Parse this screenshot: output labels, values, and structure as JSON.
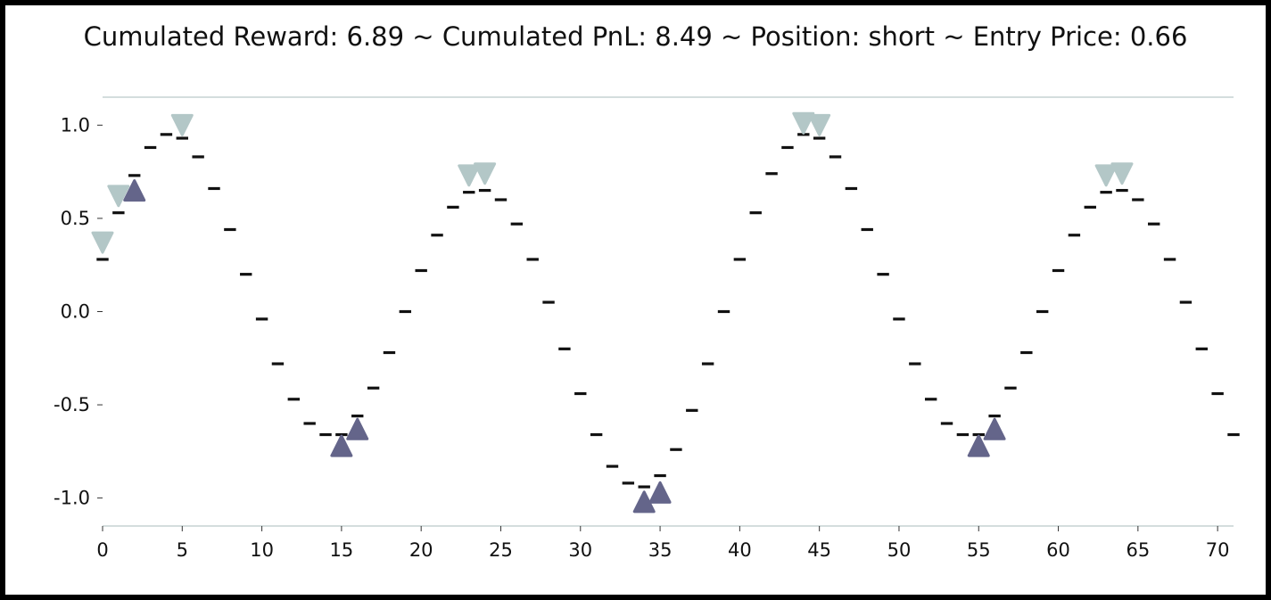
{
  "chart_data": {
    "type": "line",
    "title": "Cumulated Reward: 6.89 ~ Cumulated PnL: 8.49 ~ Position: short ~ Entry Price: 0.66",
    "xlabel": "",
    "ylabel": "",
    "xlim": [
      0,
      71
    ],
    "ylim": [
      -1.15,
      1.15
    ],
    "grid": false,
    "x_ticks": [
      0,
      5,
      10,
      15,
      20,
      25,
      30,
      35,
      40,
      45,
      50,
      55,
      60,
      65,
      70
    ],
    "y_ticks": [
      1.0,
      0.5,
      0.0,
      -0.5,
      -1.0
    ],
    "y_tick_labels": [
      "1.0",
      "0.5",
      "0.0",
      "-0.5",
      "-1.0"
    ],
    "price_series": {
      "x": [
        0,
        1,
        2,
        3,
        4,
        5,
        6,
        7,
        8,
        9,
        10,
        11,
        12,
        13,
        14,
        15,
        16,
        17,
        18,
        19,
        20,
        21,
        22,
        23,
        24,
        25,
        26,
        27,
        28,
        29,
        30,
        31,
        32,
        33,
        34,
        35,
        36,
        37,
        38,
        39,
        40,
        41,
        42,
        43,
        44,
        45,
        46,
        47,
        48,
        49,
        50,
        51,
        52,
        53,
        54,
        55,
        56,
        57,
        58,
        59,
        60,
        61,
        62,
        63,
        64,
        65,
        66,
        67,
        68,
        69,
        70,
        71
      ],
      "y": [
        0.28,
        0.53,
        0.73,
        0.88,
        0.95,
        0.93,
        0.83,
        0.66,
        0.44,
        0.2,
        -0.04,
        -0.28,
        -0.47,
        -0.6,
        -0.66,
        -0.66,
        -0.56,
        -0.41,
        -0.22,
        0.0,
        0.22,
        0.41,
        0.56,
        0.64,
        0.65,
        0.6,
        0.47,
        0.28,
        0.05,
        -0.2,
        -0.44,
        -0.66,
        -0.83,
        -0.92,
        -0.94,
        -0.88,
        -0.74,
        -0.53,
        -0.28,
        0.0,
        0.28,
        0.53,
        0.74,
        0.88,
        0.95,
        0.93,
        0.83,
        0.66,
        0.44,
        0.2,
        -0.04,
        -0.28,
        -0.47,
        -0.6,
        -0.66,
        -0.66,
        -0.56,
        -0.41,
        -0.22,
        0.0,
        0.22,
        0.41,
        0.56,
        0.64,
        0.65,
        0.6,
        0.47,
        0.28,
        0.05,
        -0.2,
        -0.44,
        -0.66
      ]
    },
    "markers": {
      "short": {
        "color": "#b3c7c7",
        "points": [
          [
            0,
            0.37
          ],
          [
            1,
            0.62
          ],
          [
            5,
            1.0
          ],
          [
            23,
            0.73
          ],
          [
            24,
            0.74
          ],
          [
            44,
            1.01
          ],
          [
            45,
            1.0
          ],
          [
            63,
            0.73
          ],
          [
            64,
            0.74
          ]
        ]
      },
      "long": {
        "color": "#64658a",
        "points": [
          [
            2,
            0.65
          ],
          [
            15,
            -0.72
          ],
          [
            16,
            -0.63
          ],
          [
            34,
            -1.02
          ],
          [
            35,
            -0.97
          ],
          [
            55,
            -0.72
          ],
          [
            56,
            -0.63
          ]
        ]
      }
    }
  }
}
